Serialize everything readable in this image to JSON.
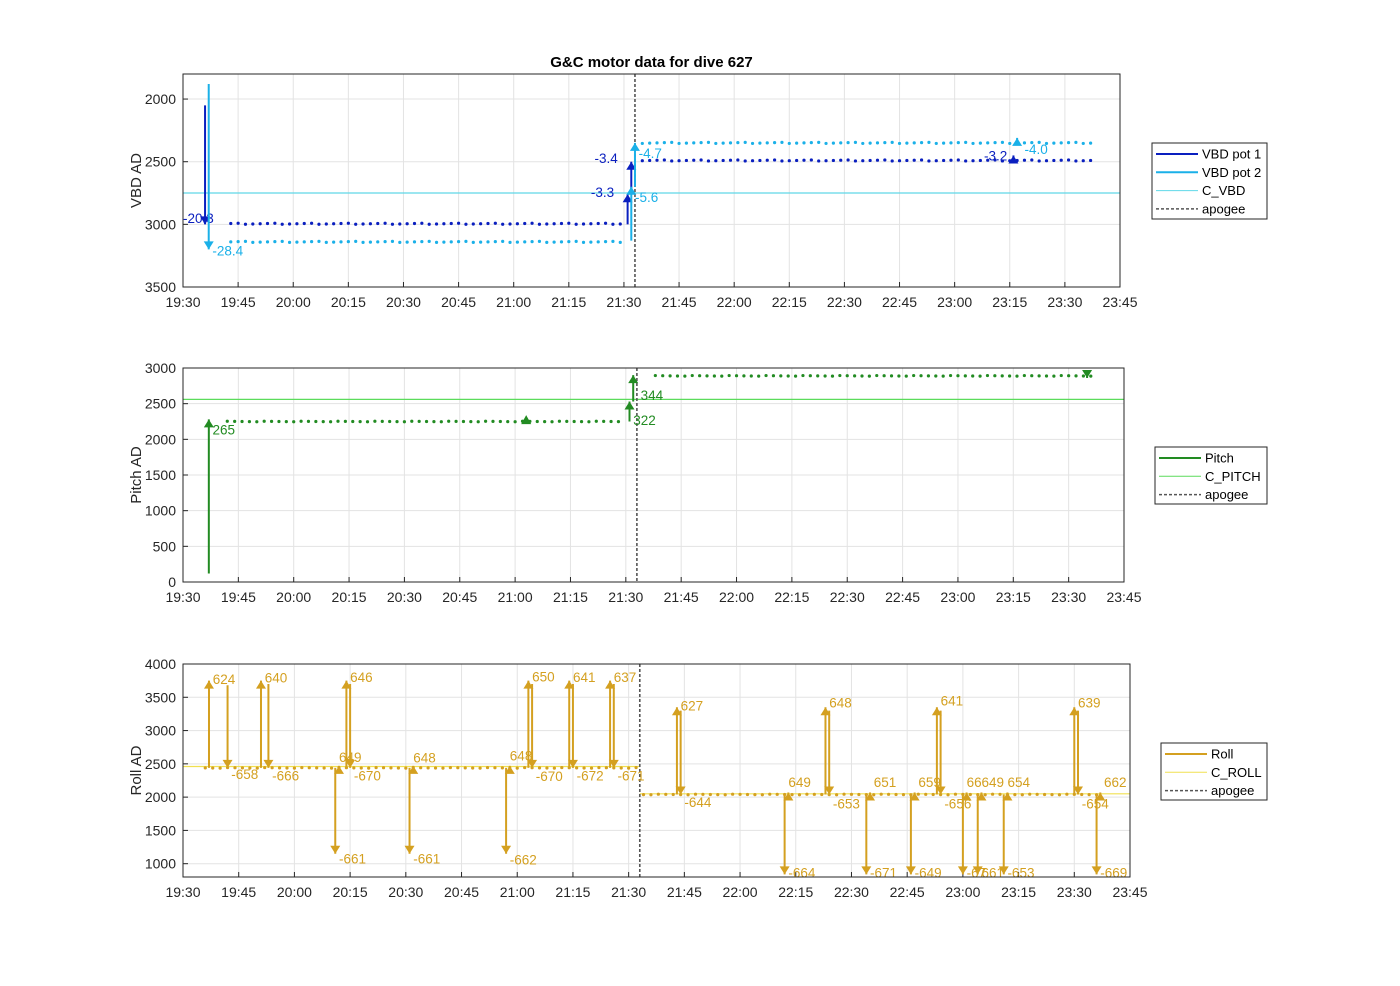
{
  "colors": {
    "vbd1": "#0a1fbf",
    "vbd2": "#1ab0e8",
    "c_vbd": "#5fd8e8",
    "pitch": "#228b22",
    "c_pitch": "#5bdc5b",
    "roll": "#d4a020",
    "c_roll": "#f0e050",
    "apogee": "#555555",
    "grid": "#e3e3e3"
  },
  "chart_data": [
    {
      "type": "line",
      "title": "G&C motor data for dive 627",
      "ylabel": "VBD AD",
      "xlim": [
        "19:30",
        "23:45"
      ],
      "xticks": [
        "19:30",
        "19:45",
        "20:00",
        "20:15",
        "20:30",
        "20:45",
        "21:00",
        "21:15",
        "21:30",
        "21:45",
        "22:00",
        "22:15",
        "22:30",
        "22:45",
        "23:00",
        "23:15",
        "23:30",
        "23:45"
      ],
      "ylim": [
        3500,
        1800
      ],
      "yreverse": true,
      "yticks": [
        "2000",
        "2500",
        "3000",
        "3500"
      ],
      "grid": true,
      "legend_position": "outside-right",
      "legend": [
        "VBD pot 1",
        "VBD pot 2",
        "C_VBD",
        "apogee"
      ],
      "series": [
        {
          "name": "VBD pot 1",
          "color_key": "vbd1",
          "dot_range": [
            "19:43",
            "21:30"
          ],
          "dot_value": 2995
        },
        {
          "name": "VBD pot 1",
          "color_key": "vbd1",
          "dot_range": [
            "21:35",
            "23:37"
          ],
          "dot_value": 2490
        },
        {
          "name": "VBD pot 2",
          "color_key": "vbd2",
          "dot_range": [
            "19:43",
            "21:30"
          ],
          "dot_value": 3140
        },
        {
          "name": "VBD pot 2",
          "color_key": "vbd2",
          "dot_range": [
            "21:35",
            "23:37"
          ],
          "dot_value": 2350
        }
      ],
      "reflines": [
        {
          "name": "C_VBD",
          "color_key": "c_vbd",
          "y": 2750
        }
      ],
      "apogee": "21:33",
      "arrows": [
        {
          "x": "19:36",
          "y0": 2050,
          "y1": 3000,
          "color_key": "vbd1",
          "label": "-20.3",
          "lx": "19:30",
          "ly": 2990
        },
        {
          "x": "19:37",
          "y0": 1880,
          "y1": 3200,
          "color_key": "vbd2",
          "label": "-28.4",
          "lx": "19:38",
          "ly": 3250
        },
        {
          "x": "21:31",
          "y0": 3000,
          "y1": 2760,
          "color_key": "vbd1",
          "label": "-3.3",
          "lx": "21:21",
          "ly": 2780
        },
        {
          "x": "21:32",
          "y0": 2760,
          "y1": 2500,
          "color_key": "vbd1",
          "label": "-3.4",
          "lx": "21:22",
          "ly": 2510
        },
        {
          "x": "21:32",
          "y0": 3130,
          "y1": 2700,
          "color_key": "vbd2",
          "label": "-5.6",
          "lx": "21:33",
          "ly": 2820
        },
        {
          "x": "21:33",
          "y0": 2700,
          "y1": 2350,
          "color_key": "vbd2",
          "label": "-4.7",
          "lx": "21:34",
          "ly": 2470
        },
        {
          "x": "23:16",
          "y0": 2490,
          "y1": 2450,
          "color_key": "vbd1",
          "label": "-3.2",
          "lx": "23:08",
          "ly": 2490
        },
        {
          "x": "23:17",
          "y0": 2350,
          "y1": 2310,
          "color_key": "vbd2",
          "label": "-4.0",
          "lx": "23:19",
          "ly": 2440
        }
      ]
    },
    {
      "type": "line",
      "ylabel": "Pitch AD",
      "xlim": [
        "19:30",
        "23:45"
      ],
      "xticks": [
        "19:30",
        "19:45",
        "20:00",
        "20:15",
        "20:30",
        "20:45",
        "21:00",
        "21:15",
        "21:30",
        "21:45",
        "22:00",
        "22:15",
        "22:30",
        "22:45",
        "23:00",
        "23:15",
        "23:30",
        "23:45"
      ],
      "ylim": [
        0,
        3000
      ],
      "yticks": [
        "0",
        "500",
        "1000",
        "1500",
        "2000",
        "2500",
        "3000"
      ],
      "grid": true,
      "legend_position": "outside-right",
      "legend": [
        "Pitch",
        "C_PITCH",
        "apogee"
      ],
      "series": [
        {
          "name": "Pitch",
          "color_key": "pitch",
          "dot_range": [
            "19:42",
            "21:29"
          ],
          "dot_value": 2250
        },
        {
          "name": "Pitch",
          "color_key": "pitch",
          "dot_range": [
            "21:38",
            "23:37"
          ],
          "dot_value": 2890
        }
      ],
      "reflines": [
        {
          "name": "C_PITCH",
          "color_key": "c_pitch",
          "y": 2560
        }
      ],
      "apogee": "21:33",
      "markers": [
        {
          "x": "21:03",
          "y": 2270,
          "color_key": "pitch",
          "shape": "up"
        }
      ],
      "arrows": [
        {
          "x": "19:37",
          "y0": 120,
          "y1": 2280,
          "color_key": "pitch",
          "label": "265",
          "lx": "19:38",
          "ly": 2070
        },
        {
          "x": "21:31",
          "y0": 2250,
          "y1": 2530,
          "color_key": "pitch",
          "label": "322",
          "lx": "21:32",
          "ly": 2200
        },
        {
          "x": "21:32",
          "y0": 2530,
          "y1": 2900,
          "color_key": "pitch",
          "label": "344",
          "lx": "21:34",
          "ly": 2550
        },
        {
          "x": "23:35",
          "y0": 2900,
          "y1": 2860,
          "color_key": "pitch",
          "label": "",
          "lx": "23:35",
          "ly": 2860
        }
      ]
    },
    {
      "type": "line",
      "ylabel": "Roll AD",
      "xlim": [
        "19:30",
        "23:45"
      ],
      "xticks": [
        "19:30",
        "19:45",
        "20:00",
        "20:15",
        "20:30",
        "20:45",
        "21:00",
        "21:15",
        "21:30",
        "21:45",
        "22:00",
        "22:15",
        "22:30",
        "22:45",
        "23:00",
        "23:15",
        "23:30",
        "23:45"
      ],
      "ylim": [
        800,
        4000
      ],
      "yticks": [
        "1000",
        "1500",
        "2000",
        "2500",
        "3000",
        "3500",
        "4000"
      ],
      "grid": true,
      "legend_position": "outside-right",
      "legend": [
        "Roll",
        "C_ROLL",
        "apogee"
      ],
      "series": [
        {
          "name": "Roll",
          "color_key": "roll",
          "dot_range": [
            "19:36",
            "21:33"
          ],
          "dot_value": 2440
        },
        {
          "name": "Roll",
          "color_key": "roll",
          "dot_range": [
            "21:34",
            "23:37"
          ],
          "dot_value": 2040
        }
      ],
      "reflines": [
        {
          "name": "C_ROLL",
          "color_key": "c_roll",
          "y": 2460,
          "from": "19:30",
          "to": "21:33"
        },
        {
          "name": "C_ROLL",
          "color_key": "c_roll",
          "y": 2050,
          "from": "21:33",
          "to": "23:45"
        }
      ],
      "apogee": "21:33",
      "arrows": [
        {
          "x": "19:37",
          "y0": 2440,
          "y1": 3750,
          "color_key": "roll",
          "label": "624",
          "lx": "19:38",
          "ly": 3700
        },
        {
          "x": "19:42",
          "y0": 3680,
          "y1": 2440,
          "color_key": "roll",
          "label": "-658",
          "lx": "19:43",
          "ly": 2270
        },
        {
          "x": "19:51",
          "y0": 2440,
          "y1": 3750,
          "color_key": "roll",
          "label": "640",
          "lx": "19:52",
          "ly": 3720
        },
        {
          "x": "19:53",
          "y0": 3700,
          "y1": 2440,
          "color_key": "roll",
          "label": "-666",
          "lx": "19:54",
          "ly": 2250
        },
        {
          "x": "20:11",
          "y0": 2440,
          "y1": 1150,
          "color_key": "roll",
          "label": "-661",
          "lx": "20:12",
          "ly": 1000
        },
        {
          "x": "20:12",
          "y0": 2440,
          "y1": 2470,
          "color_key": "roll",
          "label": "649",
          "lx": "20:12",
          "ly": 2530
        },
        {
          "x": "20:14",
          "y0": 2440,
          "y1": 3750,
          "color_key": "roll",
          "label": "646",
          "lx": "20:15",
          "ly": 3730
        },
        {
          "x": "20:15",
          "y0": 3700,
          "y1": 2440,
          "color_key": "roll",
          "label": "-670",
          "lx": "20:16",
          "ly": 2250
        },
        {
          "x": "20:31",
          "y0": 2440,
          "y1": 1150,
          "color_key": "roll",
          "label": "-661",
          "lx": "20:32",
          "ly": 1000
        },
        {
          "x": "20:32",
          "y0": 2440,
          "y1": 2470,
          "color_key": "roll",
          "label": "648",
          "lx": "20:32",
          "ly": 2520
        },
        {
          "x": "20:57",
          "y0": 2440,
          "y1": 1150,
          "color_key": "roll",
          "label": "-662",
          "lx": "20:58",
          "ly": 990
        },
        {
          "x": "20:58",
          "y0": 2440,
          "y1": 2470,
          "color_key": "roll",
          "label": "648",
          "lx": "20:58",
          "ly": 2550
        },
        {
          "x": "21:03",
          "y0": 2440,
          "y1": 3750,
          "color_key": "roll",
          "label": "650",
          "lx": "21:04",
          "ly": 3740
        },
        {
          "x": "21:04",
          "y0": 3700,
          "y1": 2440,
          "color_key": "roll",
          "label": "-670",
          "lx": "21:05",
          "ly": 2240
        },
        {
          "x": "21:14",
          "y0": 2440,
          "y1": 3750,
          "color_key": "roll",
          "label": "641",
          "lx": "21:15",
          "ly": 3730
        },
        {
          "x": "21:15",
          "y0": 3700,
          "y1": 2440,
          "color_key": "roll",
          "label": "-672",
          "lx": "21:16",
          "ly": 2250
        },
        {
          "x": "21:25",
          "y0": 2440,
          "y1": 3750,
          "color_key": "roll",
          "label": "637",
          "lx": "21:26",
          "ly": 3730
        },
        {
          "x": "21:26",
          "y0": 3700,
          "y1": 2440,
          "color_key": "roll",
          "label": "-671",
          "lx": "21:27",
          "ly": 2250
        },
        {
          "x": "21:43",
          "y0": 2040,
          "y1": 3350,
          "color_key": "roll",
          "label": "627",
          "lx": "21:44",
          "ly": 3300
        },
        {
          "x": "21:44",
          "y0": 3300,
          "y1": 2040,
          "color_key": "roll",
          "label": "-644",
          "lx": "21:45",
          "ly": 1850
        },
        {
          "x": "22:12",
          "y0": 2040,
          "y1": 840,
          "color_key": "roll",
          "label": "-664",
          "lx": "22:13",
          "ly": 790
        },
        {
          "x": "22:13",
          "y0": 2040,
          "y1": 2070,
          "color_key": "roll",
          "label": "649",
          "lx": "22:13",
          "ly": 2150
        },
        {
          "x": "22:23",
          "y0": 2040,
          "y1": 3350,
          "color_key": "roll",
          "label": "648",
          "lx": "22:24",
          "ly": 3350
        },
        {
          "x": "22:24",
          "y0": 3300,
          "y1": 2040,
          "color_key": "roll",
          "label": "-653",
          "lx": "22:25",
          "ly": 1830
        },
        {
          "x": "22:34",
          "y0": 2040,
          "y1": 840,
          "color_key": "roll",
          "label": "-671",
          "lx": "22:35",
          "ly": 790
        },
        {
          "x": "22:35",
          "y0": 2040,
          "y1": 2070,
          "color_key": "roll",
          "label": "651",
          "lx": "22:36",
          "ly": 2150
        },
        {
          "x": "22:46",
          "y0": 2040,
          "y1": 840,
          "color_key": "roll",
          "label": "-649",
          "lx": "22:47",
          "ly": 790
        },
        {
          "x": "22:47",
          "y0": 2040,
          "y1": 2070,
          "color_key": "roll",
          "label": "659",
          "lx": "22:48",
          "ly": 2150
        },
        {
          "x": "22:53",
          "y0": 2040,
          "y1": 3350,
          "color_key": "roll",
          "label": "641",
          "lx": "22:54",
          "ly": 3380
        },
        {
          "x": "22:54",
          "y0": 3300,
          "y1": 2040,
          "color_key": "roll",
          "label": "-656",
          "lx": "22:55",
          "ly": 1830
        },
        {
          "x": "23:00",
          "y0": 2040,
          "y1": 840,
          "color_key": "roll",
          "label": "-67",
          "lx": "23:01",
          "ly": 790
        },
        {
          "x": "23:01",
          "y0": 2040,
          "y1": 2070,
          "color_key": "roll",
          "label": "66",
          "lx": "23:01",
          "ly": 2150
        },
        {
          "x": "23:04",
          "y0": 2040,
          "y1": 840,
          "color_key": "roll",
          "label": "661",
          "lx": "23:05",
          "ly": 790
        },
        {
          "x": "23:05",
          "y0": 2040,
          "y1": 2070,
          "color_key": "roll",
          "label": "649",
          "lx": "23:05",
          "ly": 2150
        },
        {
          "x": "23:11",
          "y0": 2040,
          "y1": 840,
          "color_key": "roll",
          "label": "-653",
          "lx": "23:12",
          "ly": 790
        },
        {
          "x": "23:12",
          "y0": 2040,
          "y1": 2070,
          "color_key": "roll",
          "label": "654",
          "lx": "23:12",
          "ly": 2150
        },
        {
          "x": "23:30",
          "y0": 2040,
          "y1": 3350,
          "color_key": "roll",
          "label": "639",
          "lx": "23:31",
          "ly": 3350
        },
        {
          "x": "23:31",
          "y0": 3300,
          "y1": 2040,
          "color_key": "roll",
          "label": "-654",
          "lx": "23:32",
          "ly": 1830
        },
        {
          "x": "23:36",
          "y0": 2040,
          "y1": 840,
          "color_key": "roll",
          "label": "-669",
          "lx": "23:37",
          "ly": 790
        },
        {
          "x": "23:37",
          "y0": 2040,
          "y1": 2070,
          "color_key": "roll",
          "label": "662",
          "lx": "23:38",
          "ly": 2150
        }
      ]
    }
  ]
}
